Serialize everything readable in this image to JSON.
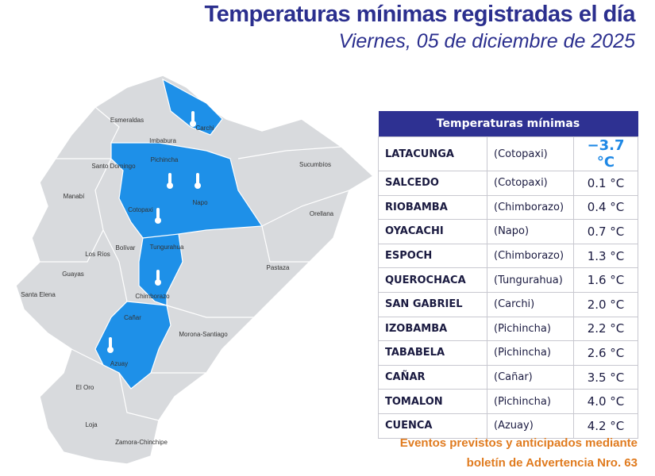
{
  "header": {
    "title": "Temperaturas mínimas registradas el día",
    "subtitle": "Viernes, 05 de diciembre de 2025"
  },
  "table": {
    "title": "Temperaturas mínimas",
    "rows": [
      [
        "LATACUNGA",
        "(Cotopaxi)",
        "−3.7 °C"
      ],
      [
        "SALCEDO",
        "(Cotopaxi)",
        "0.1 °C"
      ],
      [
        "RIOBAMBA",
        "(Chimborazo)",
        "0.4 °C"
      ],
      [
        "OYACACHI",
        "(Napo)",
        "0.7 °C"
      ],
      [
        "ESPOCH",
        "(Chimborazo)",
        "1.3 °C"
      ],
      [
        "QUEROCHACA",
        "(Tungurahua)",
        "1.6 °C"
      ],
      [
        "SAN GABRIEL",
        "(Carchi)",
        "2.0 °C"
      ],
      [
        "IZOBAMBA",
        "(Pichincha)",
        "2.2 °C"
      ],
      [
        "TABABELA",
        "(Pichincha)",
        "2.6 °C"
      ],
      [
        "CAÑAR",
        "(Cañar)",
        "3.5 °C"
      ],
      [
        "TOMALON",
        "(Pichincha)",
        "4.0 °C"
      ],
      [
        "CUENCA",
        "(Azuay)",
        "4.2 °C"
      ]
    ]
  },
  "footer": [
    "Eventos previstos y anticipados mediante",
    "boletín de Advertencia Nro. 63"
  ],
  "map": {
    "labels": [
      "Carchi",
      "Esmeraldas",
      "Imbabura",
      "Pichincha",
      "Santo Domingo",
      "Sucumbíos",
      "Manabí",
      "Napo",
      "Cotopaxi",
      "Orellana",
      "Los Ríos",
      "Bolívar",
      "Tungurahua",
      "Guayas",
      "Pastaza",
      "Santa Elena",
      "Chimborazo",
      "Cañar",
      "Morona-Santiago",
      "Azuay",
      "El Oro",
      "Loja",
      "Zamora-Chinchipe"
    ]
  }
}
